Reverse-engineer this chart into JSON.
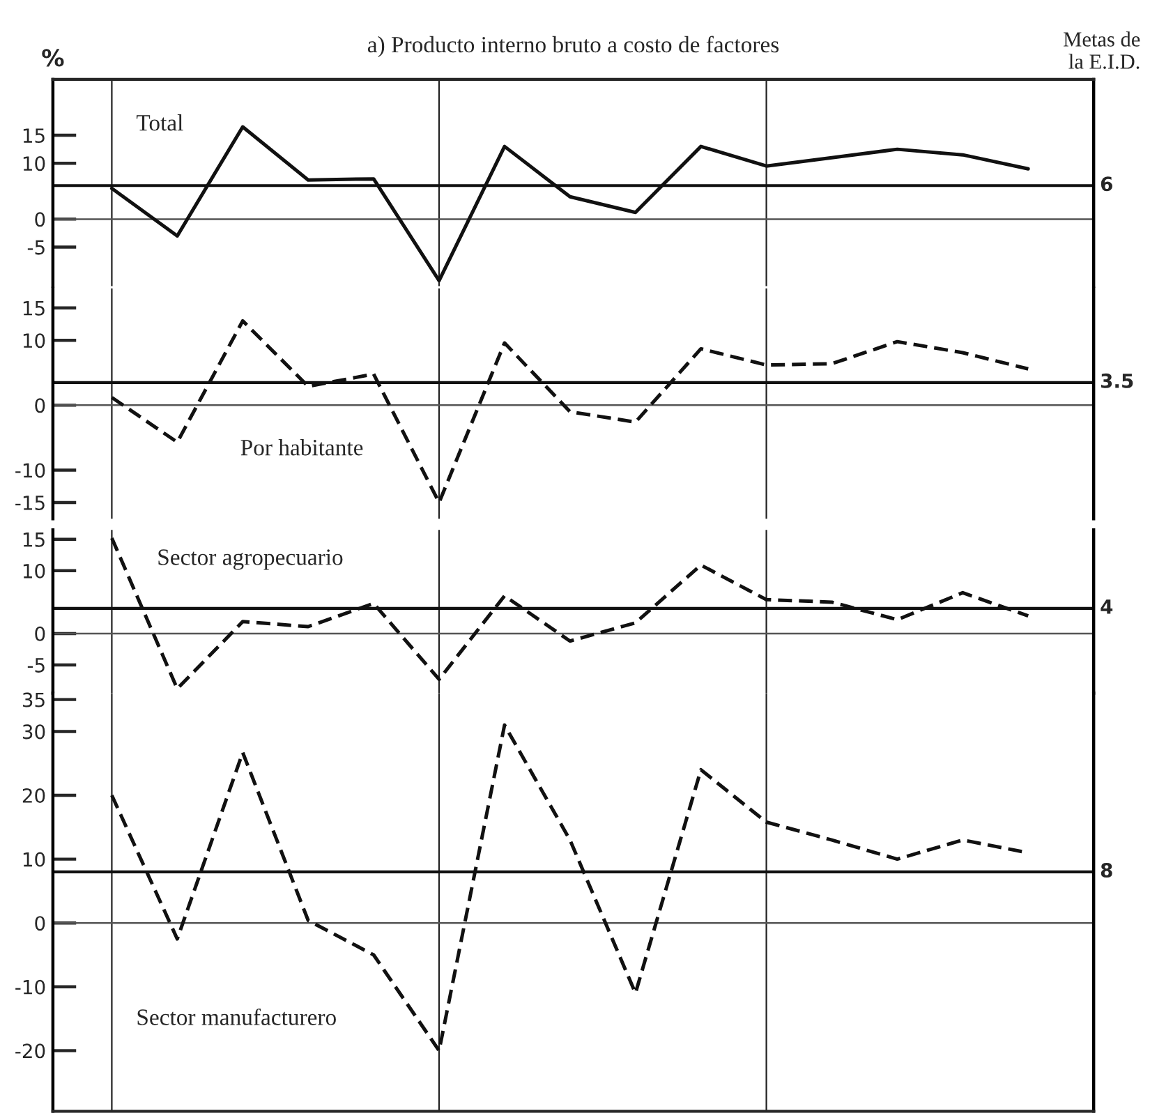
{
  "chart_data": [
    {
      "type": "line",
      "title": "a) Producto interno bruto a costo de factores",
      "ylabel": "%",
      "annotations": [
        "Metas de\nla E.I.D."
      ],
      "categories": [
        null,
        null,
        null,
        null,
        null,
        null,
        null,
        null,
        null,
        null,
        null,
        null,
        null,
        null,
        null
      ],
      "series": [
        {
          "name": "Total",
          "color": "#111111",
          "line_style": "solid",
          "values": [
            5.5,
            -3,
            16.5,
            7,
            7.2,
            -11,
            13,
            4,
            1.2,
            13,
            9.5,
            11,
            12.5,
            11.5,
            9
          ]
        }
      ],
      "ylim": [
        -12,
        25
      ],
      "yticks": [
        -5,
        0,
        10,
        15
      ],
      "ref_lines": [
        {
          "axis": "y",
          "value": 6,
          "label": "6",
          "color": "#111111"
        },
        {
          "axis": "y",
          "value": 0,
          "label": null,
          "color": "#555555"
        }
      ],
      "grid": "x",
      "tick_labels": "y",
      "marker": "none",
      "legend": false
    },
    {
      "type": "line",
      "categories": [
        null,
        null,
        null,
        null,
        null,
        null,
        null,
        null,
        null,
        null,
        null,
        null,
        null,
        null,
        null
      ],
      "series": [
        {
          "name": "Por habitante",
          "color": "#111111",
          "line_style": "dashed",
          "values": [
            1.2,
            -5.7,
            13,
            2.9,
            4.8,
            -15,
            9.6,
            -1,
            -2.6,
            8.7,
            6.2,
            6.4,
            9.8,
            8.1,
            5.6
          ]
        }
      ],
      "ylim": [
        -17.5,
        18
      ],
      "yticks": [
        -15,
        -10,
        0,
        10,
        15
      ],
      "ref_lines": [
        {
          "axis": "y",
          "value": 3.5,
          "label": "3.5",
          "color": "#111111"
        },
        {
          "axis": "y",
          "value": 0,
          "label": null,
          "color": "#555555"
        }
      ],
      "grid": "x",
      "tick_labels": "y",
      "marker": "none",
      "legend": false
    },
    {
      "type": "line",
      "categories": [
        null,
        null,
        null,
        null,
        null,
        null,
        null,
        null,
        null,
        null,
        null,
        null,
        null,
        null,
        null
      ],
      "series": [
        {
          "name": "Sector agropecuario",
          "color": "#111111",
          "line_style": "dashed",
          "values": [
            15.2,
            -8.8,
            1.9,
            1.1,
            4.8,
            -7.3,
            6,
            -1.2,
            1.7,
            10.9,
            5.4,
            5,
            2.2,
            6.5,
            2.8
          ]
        }
      ],
      "ylim": [
        -9.5,
        16.5
      ],
      "yticks": [
        -5,
        0,
        10,
        15
      ],
      "ref_lines": [
        {
          "axis": "y",
          "value": 4,
          "label": "4",
          "color": "#111111"
        },
        {
          "axis": "y",
          "value": 0,
          "label": null,
          "color": "#555555"
        }
      ],
      "grid": "x",
      "tick_labels": "y",
      "marker": "none",
      "legend": false
    },
    {
      "type": "line",
      "categories": [
        null,
        null,
        null,
        null,
        null,
        null,
        null,
        null,
        null,
        null,
        null,
        null,
        null,
        null,
        null
      ],
      "series": [
        {
          "name": "Sector manufacturero",
          "color": "#111111",
          "line_style": "dashed",
          "values": [
            20,
            -2.5,
            26.7,
            0.4,
            -5,
            -20,
            31,
            13,
            -11,
            24,
            15.8,
            13,
            10,
            13,
            11
          ]
        }
      ],
      "ylim": [
        -29.5,
        36
      ],
      "yticks": [
        -20,
        -10,
        0,
        10,
        20,
        30,
        35
      ],
      "ref_lines": [
        {
          "axis": "y",
          "value": 8,
          "label": "8",
          "color": "#111111"
        },
        {
          "axis": "y",
          "value": 0,
          "label": null,
          "color": "#555555"
        }
      ],
      "grid": "x",
      "tick_labels": "y",
      "marker": "none",
      "legend": false
    }
  ]
}
